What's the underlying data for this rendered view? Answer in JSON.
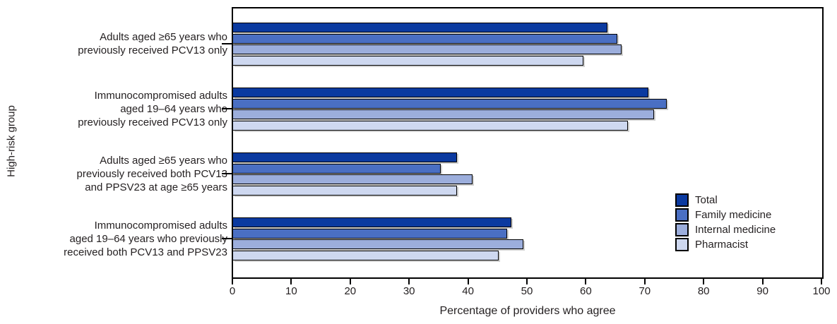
{
  "chart_data": {
    "type": "bar",
    "orientation": "horizontal",
    "title": "",
    "xlabel": "Percentage of providers who agree",
    "ylabel": "High-risk group",
    "xlim": [
      0,
      100
    ],
    "xticks": [
      0,
      10,
      20,
      30,
      40,
      50,
      60,
      70,
      80,
      90,
      100
    ],
    "grid": false,
    "legend_position": "right-middle",
    "categories": [
      [
        "Adults aged ≥65 years who",
        "previously received PCV13 only"
      ],
      [
        "Immunocompromised adults",
        "aged 19–64 years who",
        "previously received PCV13 only"
      ],
      [
        "Adults aged ≥65 years who",
        "previously received both PCV13",
        "and PPSV23 at age ≥65 years"
      ],
      [
        "Immunocompromised adults",
        "aged 19–64 years who previously",
        "received both PCV13 and PPSV23"
      ]
    ],
    "series": [
      {
        "name": "Total",
        "color": "#0B3AA0",
        "values": [
          63.5,
          70.5,
          38.0,
          47.2
        ]
      },
      {
        "name": "Family medicine",
        "color": "#4A6FC3",
        "values": [
          65.2,
          73.6,
          35.2,
          46.5
        ]
      },
      {
        "name": "Internal medicine",
        "color": "#9CAEDC",
        "values": [
          66.0,
          71.5,
          40.7,
          49.3
        ]
      },
      {
        "name": "Pharmacist",
        "color": "#CED8F0",
        "values": [
          59.5,
          67.0,
          38.0,
          45.1
        ]
      }
    ]
  },
  "colors": {
    "frame": "#000000",
    "text": "#231f20",
    "background": "#ffffff"
  }
}
